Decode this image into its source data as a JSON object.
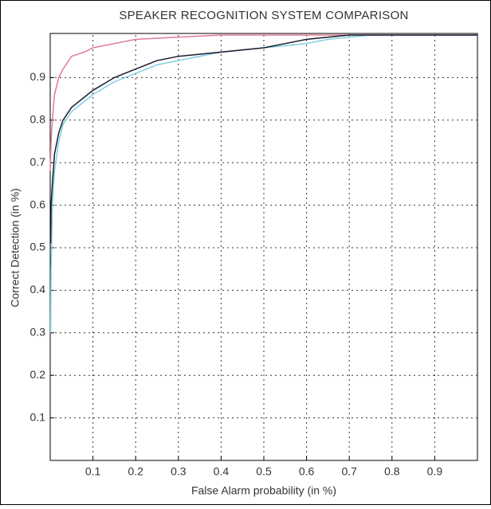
{
  "chart_data": {
    "type": "line",
    "title": "SPEAKER RECOGNITION SYSTEM COMPARISON",
    "x_label": "False Alarm probability (in %)",
    "y_label": "Correct Detection (in %)",
    "xlim": [
      0,
      1
    ],
    "ylim": [
      0,
      1
    ],
    "xticks": [
      0.1,
      0.2,
      0.3,
      0.4,
      0.5,
      0.6,
      0.7,
      0.8,
      0.9
    ],
    "yticks": [
      0.1,
      0.2,
      0.3,
      0.4,
      0.5,
      0.6,
      0.7,
      0.8,
      0.9
    ],
    "grid": true,
    "series": [
      {
        "color": "#e07a92",
        "x": [
          0,
          0.002,
          0.005,
          0.01,
          0.02,
          0.03,
          0.05,
          0.08,
          0.1,
          0.15,
          0.2,
          0.3,
          0.4,
          1
        ],
        "values": [
          0.68,
          0.75,
          0.8,
          0.86,
          0.9,
          0.92,
          0.95,
          0.96,
          0.97,
          0.98,
          0.99,
          0.995,
          1,
          1
        ]
      },
      {
        "color": "#7fd0e0",
        "x": [
          0.001,
          0.002,
          0.005,
          0.01,
          0.02,
          0.03,
          0.05,
          0.1,
          0.15,
          0.2,
          0.25,
          0.3,
          0.4,
          0.5,
          0.6,
          0.65,
          0.75,
          1
        ],
        "values": [
          0.3,
          0.45,
          0.6,
          0.68,
          0.75,
          0.79,
          0.82,
          0.86,
          0.89,
          0.91,
          0.93,
          0.94,
          0.96,
          0.97,
          0.98,
          0.99,
          1,
          1
        ]
      },
      {
        "color": "#1a1a2e",
        "x": [
          0.001,
          0.002,
          0.005,
          0.01,
          0.02,
          0.03,
          0.05,
          0.1,
          0.15,
          0.2,
          0.25,
          0.3,
          0.4,
          0.5,
          0.55,
          0.6,
          0.7,
          1
        ],
        "values": [
          0.51,
          0.6,
          0.65,
          0.72,
          0.77,
          0.8,
          0.83,
          0.87,
          0.9,
          0.92,
          0.94,
          0.95,
          0.96,
          0.97,
          0.98,
          0.99,
          1,
          1
        ]
      }
    ]
  }
}
